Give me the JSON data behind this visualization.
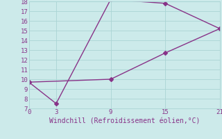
{
  "line1_x": [
    0,
    3,
    9,
    15,
    21
  ],
  "line1_y": [
    9.7,
    7.5,
    18.2,
    17.8,
    15.2
  ],
  "line2_x": [
    0,
    9,
    15,
    21
  ],
  "line2_y": [
    9.7,
    10.0,
    12.7,
    15.2
  ],
  "line_color": "#883388",
  "bg_color": "#cceaea",
  "grid_color": "#aad4d4",
  "xlabel": "Windchill (Refroidissement éolien,°C)",
  "xlabel_color": "#883388",
  "tick_color": "#883388",
  "xlim": [
    0,
    21
  ],
  "ylim": [
    7,
    18
  ],
  "xticks": [
    0,
    3,
    9,
    15,
    21
  ],
  "yticks": [
    7,
    8,
    9,
    10,
    11,
    12,
    13,
    14,
    15,
    16,
    17,
    18
  ],
  "marker": "D",
  "markersize": 3,
  "linewidth": 1.0,
  "xlabel_fontsize": 7,
  "tick_fontsize": 6.5
}
